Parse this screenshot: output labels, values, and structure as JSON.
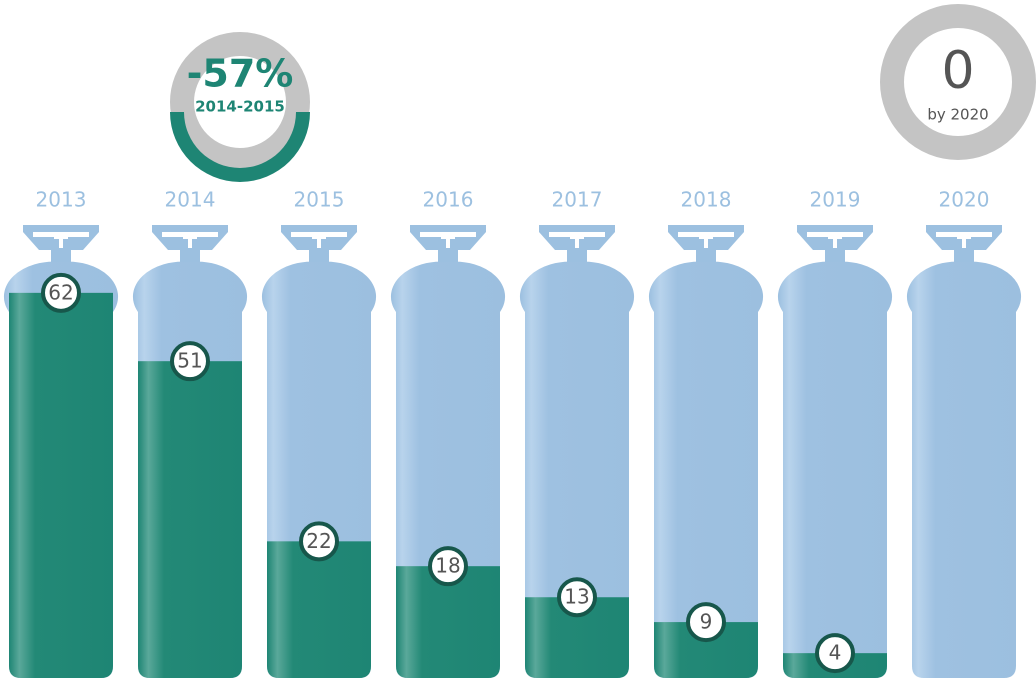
{
  "chart_data": {
    "type": "bar",
    "categories": [
      "2013",
      "2014",
      "2015",
      "2016",
      "2017",
      "2018",
      "2019",
      "2020"
    ],
    "values": [
      62,
      51,
      22,
      18,
      13,
      9,
      4,
      null
    ],
    "color": "#1e8574",
    "ylim": [
      0,
      66
    ],
    "annotations": [
      {
        "text": "-57%",
        "subtext": "2014-2015"
      },
      {
        "text": "0",
        "subtext": "by 2020"
      }
    ]
  }
}
